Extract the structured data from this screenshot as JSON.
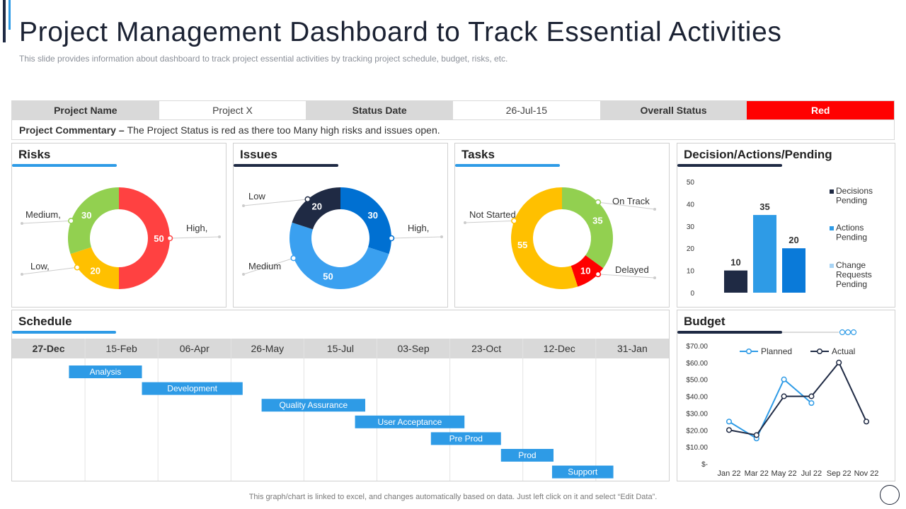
{
  "header": {
    "title": "Project Management Dashboard to Track Essential Activities",
    "subtitle": "This slide provides information about dashboard to track project essential activities by tracking project schedule, budget, risks, etc."
  },
  "info": {
    "project_name_label": "Project Name",
    "project_name_value": "Project X",
    "status_date_label": "Status Date",
    "status_date_value": "26-Jul-15",
    "overall_status_label": "Overall Status",
    "overall_status_value": "Red"
  },
  "commentary": {
    "label": "Project Commentary –",
    "text": "The Project Status is red as there too Many high risks and issues open."
  },
  "colors": {
    "red": "#ff4141",
    "green": "#92d050",
    "yellow": "#ffc000",
    "navy": "#1f2a44",
    "blue": "#0070d2",
    "lightblue": "#3aa0f0",
    "bar_blue": "#2e9be6",
    "status_red": "#ff0000"
  },
  "panels": {
    "risks": "Risks",
    "issues": "Issues",
    "tasks": "Tasks",
    "decision": "Decision/Actions/Pending",
    "schedule": "Schedule",
    "budget": "Budget"
  },
  "chart_data": [
    {
      "type": "pie",
      "panel": "risks",
      "slices": [
        {
          "label": "High,",
          "value": 50,
          "color": "#ff4141"
        },
        {
          "label": "Low,",
          "value": 20,
          "color": "#ffc000"
        },
        {
          "label": "Medium,",
          "value": 30,
          "color": "#92d050"
        }
      ]
    },
    {
      "type": "pie",
      "panel": "issues",
      "slices": [
        {
          "label": "High,",
          "value": 30,
          "color": "#0070d2"
        },
        {
          "label": "Medium",
          "value": 50,
          "color": "#3aa0f0"
        },
        {
          "label": "Low",
          "value": 20,
          "color": "#1f2a44"
        }
      ]
    },
    {
      "type": "pie",
      "panel": "tasks",
      "slices": [
        {
          "label": "On Track",
          "value": 35,
          "color": "#92d050"
        },
        {
          "label": "Delayed",
          "value": 10,
          "color": "#ff0000"
        },
        {
          "label": "Not Started",
          "value": 55,
          "color": "#ffc000"
        }
      ]
    },
    {
      "type": "bar",
      "panel": "decision",
      "categories": [
        "Decisions Pending",
        "Actions Pending",
        "Change Requests Pending"
      ],
      "values": [
        10,
        35,
        20
      ],
      "colors": [
        "#1f2a44",
        "#2e9be6",
        "#0a7ad9"
      ],
      "legend_colors": [
        "#1f2a44",
        "#2e9be6",
        "#a8d4f5"
      ],
      "ylim": [
        0,
        50
      ],
      "yticks": [
        "0",
        "10",
        "20",
        "30",
        "40",
        "50"
      ],
      "legend": "right"
    },
    {
      "type": "gantt",
      "panel": "schedule",
      "dates": [
        "27-Dec",
        "15-Feb",
        "06-Apr",
        "26-May",
        "15-Jul",
        "03-Sep",
        "23-Oct",
        "12-Dec",
        "31-Jan"
      ],
      "tasks": [
        {
          "name": "Analysis",
          "start": "2021-02-04",
          "end": "2021-03-26"
        },
        {
          "name": "Development",
          "start": "2021-03-26",
          "end": "2021-06-03"
        },
        {
          "name": "Quality Assurance",
          "start": "2021-06-16",
          "end": "2021-08-26"
        },
        {
          "name": "User Acceptance",
          "start": "2021-08-19",
          "end": "2021-11-02"
        },
        {
          "name": "Pre Prod",
          "start": "2021-10-10",
          "end": "2021-11-27"
        },
        {
          "name": "Prod",
          "start": "2021-11-27",
          "end": "2022-01-02"
        },
        {
          "name": "Support",
          "start": "2022-01-01",
          "end": "2022-02-12"
        }
      ]
    },
    {
      "type": "line",
      "panel": "budget",
      "x": [
        "Jan 22",
        "Feb 22",
        "Mar 22",
        "Apr 22",
        "May 22",
        "Jun 22",
        "Jul 22",
        "Aug 22",
        "Sep 22",
        "Oct 22",
        "Nov 22"
      ],
      "x_tick_labels": [
        "Jan 22",
        "Mar 22",
        "May 22",
        "Jul 22",
        "Sep 22",
        "Nov 22"
      ],
      "series": [
        {
          "name": "Planned",
          "color": "#2e9be6",
          "values": [
            25,
            null,
            15,
            null,
            50,
            null,
            36,
            null,
            null,
            null,
            null
          ]
        },
        {
          "name": "Actual",
          "color": "#1f2a44",
          "values": [
            20,
            null,
            17,
            null,
            40,
            null,
            40,
            null,
            60,
            null,
            25
          ]
        }
      ],
      "ylim": [
        0,
        70
      ],
      "yticks": [
        "$-",
        "$10.00",
        "$20.00",
        "$30.00",
        "$40.00",
        "$50.00",
        "$60.00",
        "$70.00"
      ],
      "legend": "top"
    }
  ],
  "footer": {
    "note": "This graph/chart is linked to excel, and changes automatically based on data. Just left click on it and select “Edit Data”."
  }
}
